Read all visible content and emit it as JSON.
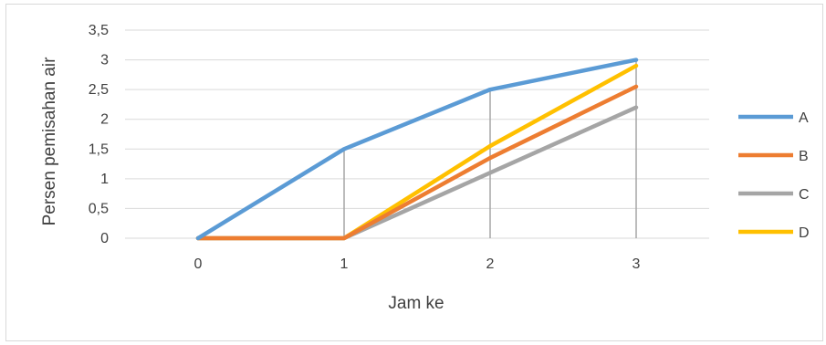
{
  "chart_data": {
    "type": "line",
    "title": "",
    "xlabel": "Jam ke",
    "ylabel": "Persen pemisahan air",
    "categories": [
      "0",
      "1",
      "2",
      "3"
    ],
    "y_ticks": [
      "0",
      "0,5",
      "1",
      "1,5",
      "2",
      "2,5",
      "3",
      "3,5"
    ],
    "ylim": [
      0,
      3.5
    ],
    "grid": true,
    "drop_lines": true,
    "legend_position": "right",
    "series": [
      {
        "name": "A",
        "color": "#5b9bd5",
        "values": [
          0,
          1.5,
          2.5,
          3.0
        ]
      },
      {
        "name": "B",
        "color": "#ed7d31",
        "values": [
          0,
          0,
          1.35,
          2.55
        ]
      },
      {
        "name": "C",
        "color": "#a5a5a5",
        "values": [
          0,
          0,
          1.1,
          2.2
        ]
      },
      {
        "name": "D",
        "color": "#ffc000",
        "values": [
          0,
          0,
          1.55,
          2.9
        ]
      }
    ]
  }
}
